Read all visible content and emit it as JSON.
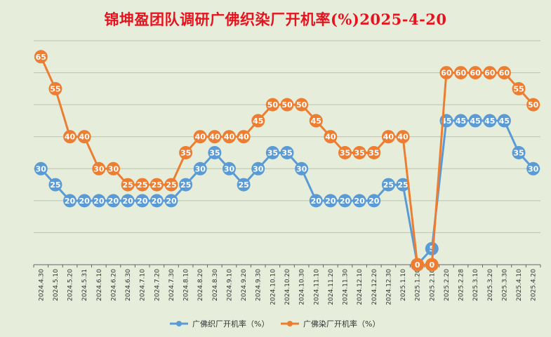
{
  "chart_data": {
    "type": "line",
    "title": "锦坤盈团队调研广佛织染厂开机率(%)2025-4-20",
    "xlabel": "",
    "ylabel": "",
    "ylim": [
      0,
      70
    ],
    "grid": true,
    "legend_position": "bottom",
    "x": [
      "2024.4.30",
      "2024.5.10",
      "2024.5.20",
      "2024.5.31",
      "2024.6.10",
      "2024.6.20",
      "2024.6.30",
      "2024.7.10",
      "2024.7.20",
      "2024.7.30",
      "2024.8.10",
      "2024.8.20",
      "2024.8.30",
      "2024.9.10",
      "2024.9.20",
      "2024.9.30",
      "2024.10.10",
      "2024.10.20",
      "2024.10.30",
      "2024.11.10",
      "2024.11.20",
      "2024.11.30",
      "2024.12.10",
      "2024.12.20",
      "2024.12.30",
      "2025.1.10",
      "2025.1.20",
      "2025.2.10",
      "2025.2.20",
      "2025.2.28",
      "2025.3.10",
      "2025.3.20",
      "2025.3.30",
      "2025.4.10",
      "2025.4.20"
    ],
    "series": [
      {
        "name": "广佛织厂开机率（%）",
        "color": "#5b9bd5",
        "values": [
          30,
          25,
          20,
          20,
          20,
          20,
          20,
          20,
          20,
          20,
          25,
          30,
          35,
          30,
          25,
          30,
          35,
          35,
          30,
          20,
          20,
          20,
          20,
          20,
          25,
          25,
          0,
          5,
          45,
          45,
          45,
          45,
          45,
          35,
          30
        ]
      },
      {
        "name": "广佛染厂开机率（%）",
        "color": "#ed7d31",
        "values": [
          65,
          55,
          40,
          40,
          30,
          30,
          25,
          25,
          25,
          25,
          35,
          40,
          40,
          40,
          40,
          45,
          50,
          50,
          50,
          45,
          40,
          35,
          35,
          35,
          40,
          40,
          0,
          0,
          60,
          60,
          60,
          60,
          60,
          55,
          50
        ]
      }
    ]
  }
}
